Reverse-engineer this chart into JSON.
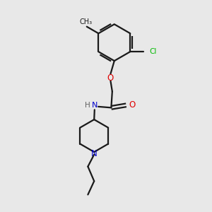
{
  "bg_color": "#e8e8e8",
  "bond_color": "#1a1a1a",
  "atom_colors": {
    "O": "#e00000",
    "N": "#0000cc",
    "Cl": "#00bb00",
    "C": "#1a1a1a",
    "H": "#606060"
  },
  "line_width": 1.6,
  "figsize": [
    3.0,
    3.0
  ],
  "dpi": 100
}
